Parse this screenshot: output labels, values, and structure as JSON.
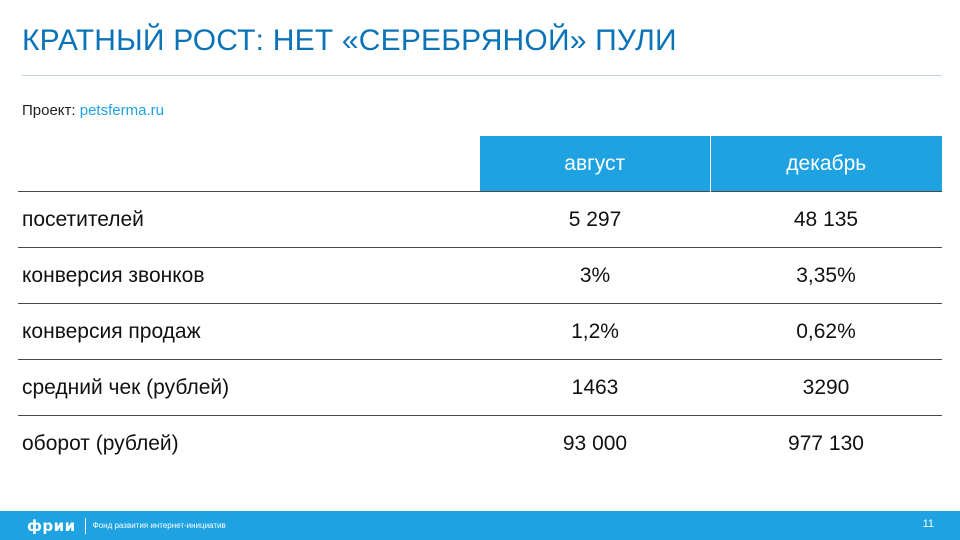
{
  "slide": {
    "title": "КРАТНЫЙ РОСТ: НЕТ «СЕРЕБРЯНОЙ» ПУЛИ",
    "project_label": "Проект:",
    "project_value": "petsferma.ru"
  },
  "table": {
    "headers": [
      "",
      "август",
      "декабрь"
    ],
    "rows": [
      {
        "label": "посетителей",
        "aug": "5 297",
        "dec": "48 135"
      },
      {
        "label": "конверсия звонков",
        "aug": "3%",
        "dec": "3,35%"
      },
      {
        "label": "конверсия продаж",
        "aug": "1,2%",
        "dec": "0,62%"
      },
      {
        "label": "средний чек (рублей)",
        "aug": "1463",
        "dec": "3290"
      },
      {
        "label": "оборот (рублей)",
        "aug": "93 000",
        "dec": "977 130"
      }
    ]
  },
  "footer": {
    "logo_mark": "фрии",
    "logo_text": "Фонд развития интернет-инициатив",
    "page_number": "11"
  },
  "colors": {
    "title": "#0a73b8",
    "accent": "#1ea2e2",
    "rule": "#b7d9ee",
    "row_divider": "#4a4a4a"
  }
}
